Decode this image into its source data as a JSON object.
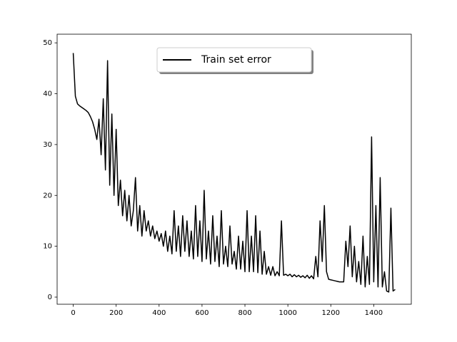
{
  "chart_data": {
    "type": "line",
    "x": [
      0,
      10,
      20,
      30,
      40,
      50,
      60,
      70,
      80,
      90,
      100,
      110,
      120,
      130,
      140,
      150,
      160,
      170,
      180,
      190,
      200,
      210,
      220,
      230,
      240,
      250,
      260,
      270,
      280,
      290,
      300,
      310,
      320,
      330,
      340,
      350,
      360,
      370,
      380,
      390,
      400,
      410,
      420,
      430,
      440,
      450,
      460,
      470,
      480,
      490,
      500,
      510,
      520,
      530,
      540,
      550,
      560,
      570,
      580,
      590,
      600,
      610,
      620,
      630,
      640,
      650,
      660,
      670,
      680,
      690,
      700,
      710,
      720,
      730,
      740,
      750,
      760,
      770,
      780,
      790,
      800,
      810,
      820,
      830,
      840,
      850,
      860,
      870,
      880,
      890,
      900,
      910,
      920,
      930,
      940,
      950,
      960,
      970,
      980,
      990,
      1000,
      1010,
      1020,
      1030,
      1040,
      1050,
      1060,
      1070,
      1080,
      1090,
      1100,
      1110,
      1120,
      1130,
      1140,
      1150,
      1160,
      1170,
      1180,
      1190,
      1200,
      1210,
      1220,
      1230,
      1240,
      1250,
      1260,
      1270,
      1280,
      1290,
      1300,
      1310,
      1320,
      1330,
      1340,
      1350,
      1360,
      1370,
      1380,
      1390,
      1400,
      1410,
      1420,
      1430,
      1440,
      1450,
      1460,
      1470,
      1480,
      1490,
      1500
    ],
    "series": [
      {
        "name": "Train set error",
        "color": "#000000",
        "values": [
          48,
          39.5,
          38,
          37.6,
          37.3,
          37,
          36.7,
          36.3,
          35.5,
          34.5,
          33,
          31,
          35,
          28,
          39,
          25,
          46.5,
          22,
          36,
          20,
          33,
          18,
          23,
          16,
          21,
          15,
          20,
          14,
          17,
          23.5,
          13,
          18,
          12,
          17,
          13,
          15,
          12,
          14,
          11.5,
          13,
          11,
          12.5,
          10,
          13,
          9,
          12,
          8.5,
          17,
          9,
          14,
          8,
          16,
          9,
          15,
          8,
          13,
          7.5,
          18,
          8,
          15,
          7,
          21,
          7.5,
          13,
          6.5,
          16,
          7,
          12,
          6,
          17,
          6.5,
          10,
          6,
          14,
          6.5,
          9,
          5.5,
          12,
          5.5,
          11,
          5,
          17,
          5,
          12,
          5,
          16,
          4.8,
          13,
          4.5,
          9,
          4.5,
          6,
          4.3,
          6,
          4.2,
          5,
          4.2,
          15,
          4.3,
          4.5,
          4.2,
          4.5,
          4,
          4.4,
          4,
          4.3,
          3.9,
          4.2,
          3.8,
          4.3,
          3.7,
          4.2,
          3.6,
          8,
          4,
          15,
          7,
          18,
          5,
          3.5,
          3.4,
          3.3,
          3.2,
          3.1,
          3,
          3,
          3,
          11,
          6,
          14,
          4,
          10,
          3,
          7,
          2.5,
          12,
          2,
          8,
          2.5,
          31.5,
          3,
          18,
          2,
          23.5,
          2,
          5,
          1.2,
          1,
          17.5,
          1.2,
          1.5
        ]
      }
    ],
    "xlim": [
      -75,
      1575
    ],
    "ylim": [
      -1.4,
      51.7
    ],
    "xticks": [
      0,
      200,
      400,
      600,
      800,
      1000,
      1200,
      1400
    ],
    "yticks": [
      0,
      10,
      20,
      30,
      40,
      50
    ],
    "grid": false,
    "legend": "upper center"
  }
}
